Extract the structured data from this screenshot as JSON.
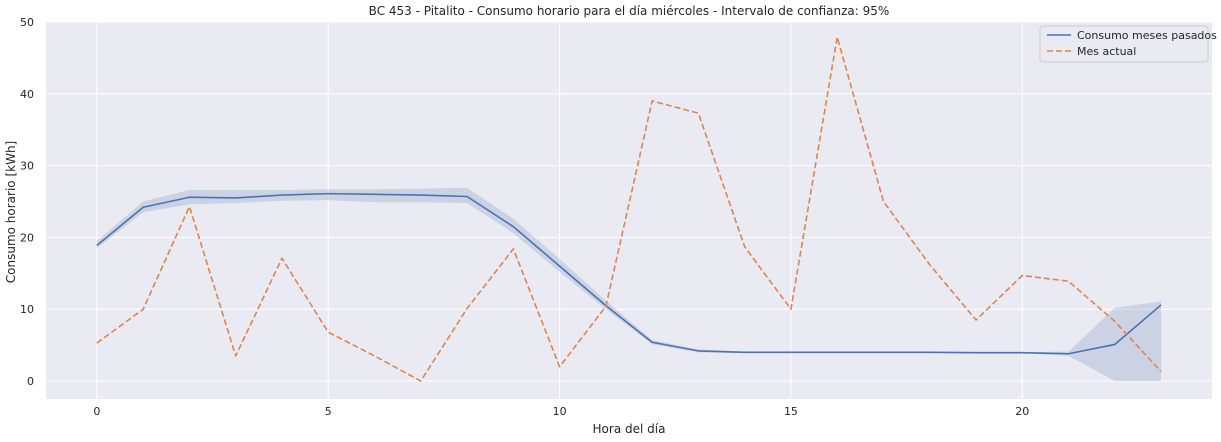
{
  "chart_data": {
    "type": "line",
    "title": "BC 453 - Pitalito - Consumo horario para el día miércoles - Intervalo de confianza: 95%",
    "xlabel": "Hora del día",
    "ylabel": "Consumo horario [kWh]",
    "xlim": [
      -1.1,
      24.1
    ],
    "ylim": [
      -2.5,
      50
    ],
    "x_ticks": [
      0,
      5,
      10,
      15,
      20
    ],
    "y_ticks": [
      0,
      10,
      20,
      30,
      40,
      50
    ],
    "grid": true,
    "legend_position": "top-right",
    "x": [
      0,
      1,
      2,
      3,
      4,
      5,
      6,
      7,
      8,
      9,
      10,
      11,
      12,
      13,
      14,
      15,
      16,
      17,
      18,
      19,
      20,
      21,
      22,
      23
    ],
    "series": [
      {
        "name": "Consumo meses pasados",
        "style": "solid",
        "color": "#4c72b0",
        "values": [
          18.9,
          24.2,
          25.6,
          25.5,
          25.9,
          26.1,
          26.0,
          25.9,
          25.7,
          21.5,
          16.0,
          10.5,
          5.4,
          4.2,
          4.0,
          4.0,
          4.0,
          4.0,
          4.0,
          3.95,
          3.95,
          3.8,
          5.1,
          10.6
        ],
        "ci_lower": [
          18.5,
          23.5,
          24.6,
          24.8,
          25.1,
          25.2,
          24.9,
          24.9,
          24.8,
          20.6,
          15.2,
          10.0,
          5.1,
          4.0,
          3.9,
          3.9,
          3.9,
          3.9,
          3.9,
          3.85,
          3.85,
          3.5,
          0.0,
          0.0
        ],
        "ci_upper": [
          19.5,
          25.0,
          26.6,
          26.6,
          26.6,
          26.7,
          26.7,
          26.8,
          26.9,
          22.6,
          17.0,
          11.2,
          5.7,
          4.4,
          4.1,
          4.1,
          4.1,
          4.1,
          4.1,
          4.05,
          4.05,
          4.1,
          10.2,
          11.1
        ]
      },
      {
        "name": "Mes actual",
        "style": "dashed",
        "color": "#dd8452",
        "values": [
          5.3,
          10.0,
          24.3,
          3.5,
          17.1,
          6.8,
          3.5,
          0.0,
          10.1,
          18.4,
          2.0,
          10.4,
          39.0,
          37.3,
          18.7,
          10.0,
          47.9,
          25.0,
          16.2,
          8.5,
          14.7,
          13.9,
          8.3,
          1.3
        ]
      }
    ]
  },
  "colors": {
    "plot_background": "#eaeaf2",
    "grid": "#ffffff",
    "ci_fill": "#4c72b0"
  }
}
